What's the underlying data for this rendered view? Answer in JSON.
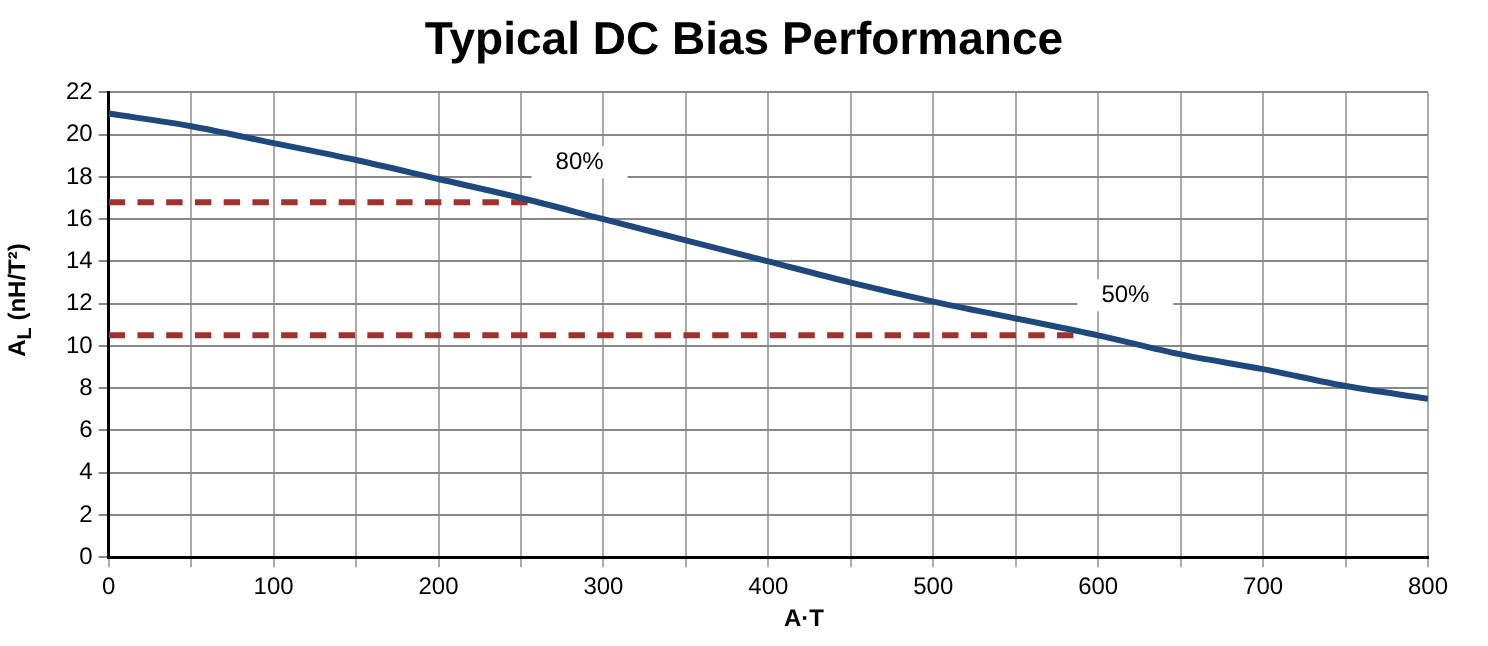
{
  "chart_data": {
    "type": "line",
    "title": "Typical DC Bias Performance",
    "xlabel": "A·T",
    "ylabel": "A$_{L}$ (nH/T²)",
    "xlim": [
      0,
      800
    ],
    "ylim": [
      0,
      22
    ],
    "xticks": [
      0,
      {
        "value": 50,
        "label": null
      },
      100,
      {
        "value": 150,
        "label": null
      },
      200,
      {
        "value": 250,
        "label": null
      },
      300,
      {
        "value": 350,
        "label": null
      },
      400,
      {
        "value": 450,
        "label": null
      },
      500,
      {
        "value": 550,
        "label": null
      },
      600,
      {
        "value": 650,
        "label": null
      },
      700,
      {
        "value": 750,
        "label": null
      },
      800
    ],
    "yticks": [
      0,
      2,
      4,
      6,
      8,
      10,
      12,
      14,
      16,
      18,
      20,
      22
    ],
    "grid": true,
    "legend": false,
    "marker": "none",
    "series": [
      {
        "color": "#1f497d",
        "line_style": "solid",
        "x": [
          0,
          50,
          100,
          150,
          200,
          250,
          300,
          350,
          400,
          450,
          500,
          550,
          600,
          650,
          700,
          750,
          800
        ],
        "values": [
          21,
          20.4,
          19.6,
          18.8,
          17.9,
          17,
          16,
          15,
          14,
          13,
          12.1,
          11.3,
          10.5,
          9.6,
          8.9,
          8.1,
          7.5
        ]
      },
      {
        "color": "#a0322d",
        "line_style": "dashed",
        "x": [
          0,
          254
        ],
        "values": [
          16.8,
          16.8
        ]
      },
      {
        "color": "#a0322d",
        "line_style": "dashed",
        "x": [
          0,
          585
        ],
        "values": [
          10.5,
          10.5
        ]
      }
    ],
    "annotations": [
      {
        "text": "80%",
        "x": 254,
        "y": 16.8
      },
      {
        "text": "50%",
        "x": 585,
        "y": 10.5
      }
    ]
  }
}
